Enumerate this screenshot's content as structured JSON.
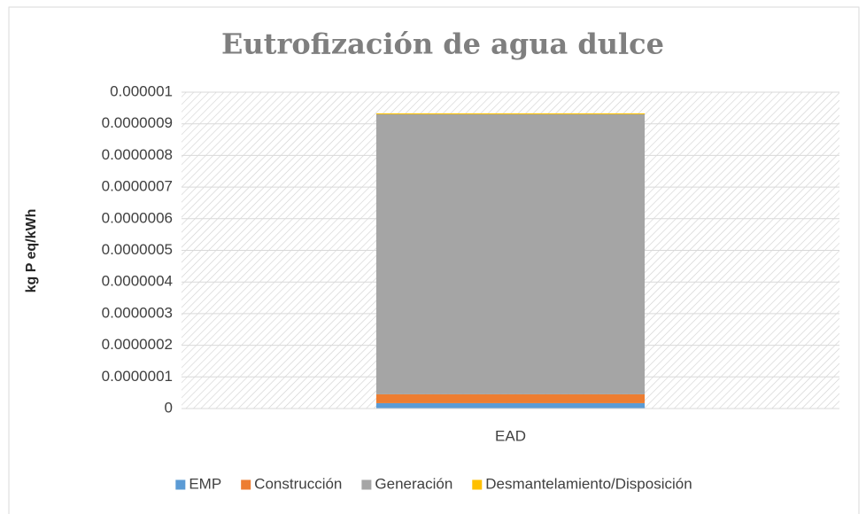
{
  "chart_data": {
    "type": "stacked_bar",
    "title": "Eutrofización de agua dulce",
    "y_label": "kg P eq/kWh",
    "categories": [
      "EAD"
    ],
    "series": [
      {
        "name": "EMP",
        "color": "#5b9bd5",
        "values": [
          1.7e-08
        ]
      },
      {
        "name": "Construcción",
        "color": "#ed7d31",
        "values": [
          2.8e-08
        ]
      },
      {
        "name": "Generación",
        "color": "#a5a5a5",
        "values": [
          8.85e-07
        ]
      },
      {
        "name": "Desmantelamiento/Disposición",
        "color": "#ffc000",
        "values": [
          3e-09
        ]
      }
    ],
    "ylim": [
      0,
      1e-06
    ],
    "yticks": [
      0,
      {
        "value": 1e-07,
        "label": "0.0000001"
      },
      {
        "value": 2e-07,
        "label": "0.0000002"
      },
      {
        "value": 3e-07,
        "label": "0.0000003"
      },
      {
        "value": 4e-07,
        "label": "0.0000004"
      },
      {
        "value": 5e-07,
        "label": "0.0000005"
      },
      {
        "value": 6e-07,
        "label": "0.0000006"
      },
      {
        "value": 7e-07,
        "label": "0.0000007"
      },
      {
        "value": 8e-07,
        "label": "0.0000008"
      },
      {
        "value": 9e-07,
        "label": "0.0000009"
      },
      1e-06
    ],
    "grid": true,
    "legend": "bottom"
  }
}
